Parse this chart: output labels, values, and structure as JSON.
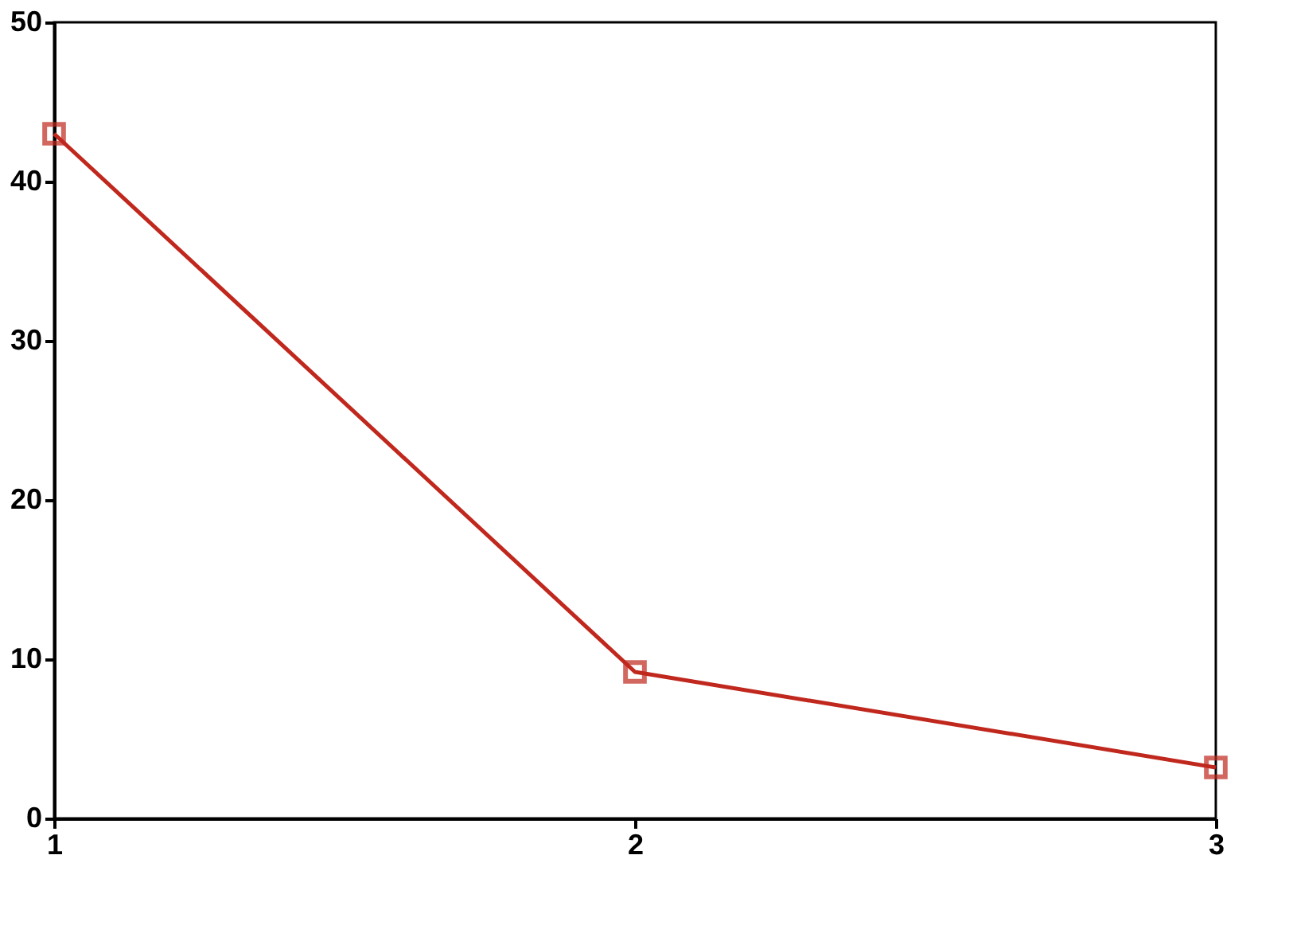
{
  "chart_data": {
    "type": "line",
    "x": [
      1,
      2,
      3
    ],
    "series": [
      {
        "color": "#c0281e",
        "values": [
          43,
          9.2,
          3.2
        ]
      }
    ],
    "xlim": [
      1,
      3
    ],
    "xticks": [
      1,
      2,
      3
    ],
    "ylim": [
      0,
      50
    ],
    "yticks": [
      0,
      10,
      20,
      30,
      40,
      50
    ],
    "grid": false,
    "marker": "square",
    "line_style": "solid"
  }
}
